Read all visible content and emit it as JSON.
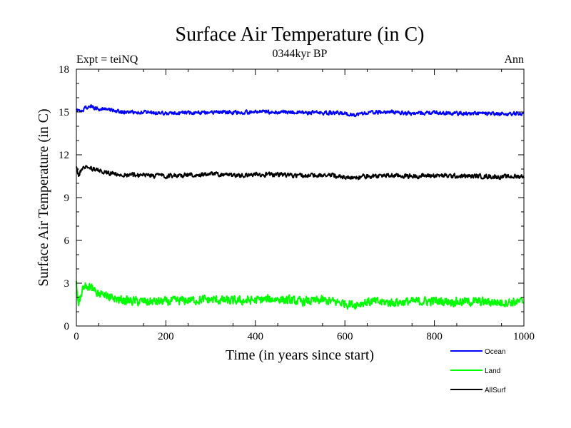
{
  "chart_data": {
    "type": "line",
    "title": "Surface Air Temperature (in C)",
    "subtitle": "0344kyr BP",
    "left_label": "Expt = teiNQ",
    "right_label": "Ann",
    "xlabel": "Time (in years since start)",
    "ylabel": "Surface Air Temperature (in C)",
    "xlim": [
      0,
      1000
    ],
    "ylim": [
      0,
      18
    ],
    "x_ticks": [
      0,
      200,
      400,
      600,
      800,
      1000
    ],
    "y_ticks": [
      0,
      3,
      6,
      9,
      12,
      15,
      18
    ],
    "x_tick_labels": [
      "0",
      "200",
      "400",
      "600",
      "800",
      "1000"
    ],
    "y_tick_labels": [
      "0",
      "3",
      "6",
      "9",
      "12",
      "15",
      "18"
    ],
    "legend_position": "bottom-right",
    "series": [
      {
        "name": "Ocean",
        "color": "#0000ff",
        "x": [
          0,
          10,
          20,
          30,
          40,
          60,
          80,
          100,
          150,
          200,
          250,
          300,
          350,
          400,
          450,
          500,
          550,
          600,
          620,
          650,
          700,
          750,
          800,
          850,
          900,
          950,
          1000
        ],
        "values": [
          15.2,
          15.0,
          15.3,
          15.4,
          15.3,
          15.2,
          15.1,
          15.0,
          15.0,
          14.9,
          14.95,
          15.0,
          14.95,
          15.0,
          15.0,
          14.95,
          14.95,
          14.9,
          14.8,
          14.95,
          15.0,
          14.9,
          14.95,
          14.9,
          14.9,
          14.85,
          14.9
        ],
        "noise": 0.12
      },
      {
        "name": "Land",
        "color": "#00ff00",
        "x": [
          0,
          5,
          10,
          20,
          30,
          40,
          60,
          80,
          100,
          150,
          200,
          250,
          300,
          350,
          400,
          450,
          500,
          550,
          600,
          620,
          650,
          700,
          750,
          800,
          850,
          900,
          950,
          1000
        ],
        "values": [
          2.9,
          1.5,
          2.2,
          2.8,
          2.7,
          2.5,
          2.2,
          2.0,
          1.8,
          1.7,
          1.7,
          1.8,
          1.85,
          1.75,
          1.8,
          1.9,
          1.7,
          1.8,
          1.6,
          1.5,
          1.7,
          1.65,
          1.7,
          1.75,
          1.7,
          1.7,
          1.65,
          1.7
        ],
        "noise": 0.28
      },
      {
        "name": "AllSurf",
        "color": "#000000",
        "x": [
          0,
          5,
          10,
          20,
          30,
          40,
          60,
          80,
          100,
          150,
          200,
          250,
          300,
          350,
          400,
          450,
          500,
          550,
          600,
          620,
          650,
          700,
          750,
          800,
          850,
          900,
          950,
          1000
        ],
        "values": [
          11.1,
          10.5,
          10.9,
          11.2,
          11.1,
          11.0,
          10.8,
          10.7,
          10.6,
          10.55,
          10.5,
          10.6,
          10.65,
          10.55,
          10.6,
          10.6,
          10.55,
          10.6,
          10.45,
          10.35,
          10.5,
          10.55,
          10.5,
          10.55,
          10.5,
          10.5,
          10.45,
          10.5
        ],
        "noise": 0.14
      }
    ]
  }
}
